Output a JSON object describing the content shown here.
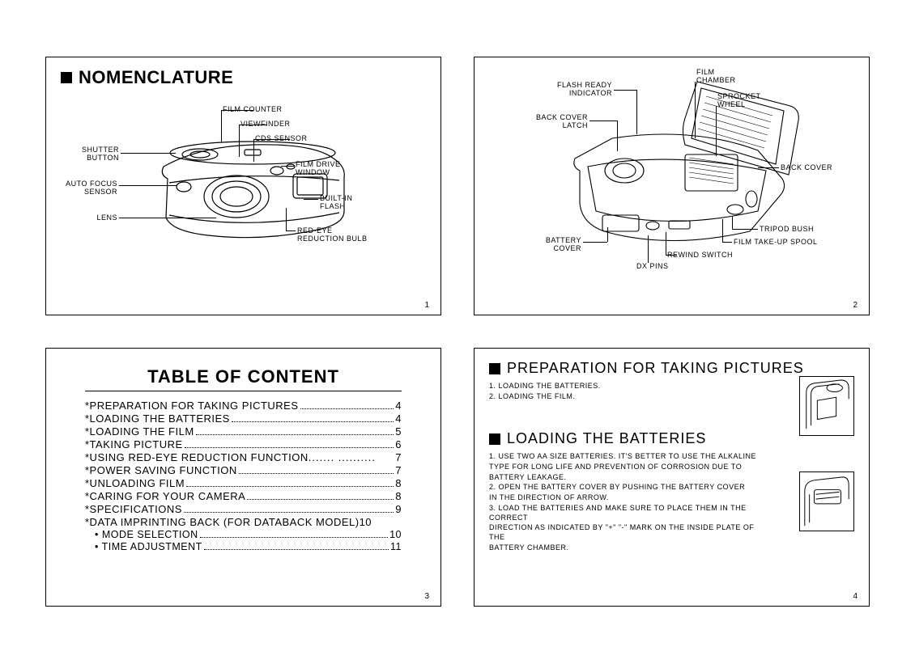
{
  "panel1": {
    "title": "NOMENCLATURE",
    "page": "1",
    "labels": {
      "shutter_button": "SHUTTER\nBUTTON",
      "auto_focus": "AUTO FOCUS\nSENSOR",
      "lens": "LENS",
      "film_counter": "FILM COUNTER",
      "viewfinder": "VIEWFINDER",
      "cds_sensor": "CDS SENSOR",
      "film_drive": "FILM DRIVE\nWINDOW",
      "built_in_flash": "BUILT-IN\nFLASH",
      "red_eye": "RED-EYE\nREDUCTION BULB"
    }
  },
  "panel2": {
    "page": "2",
    "labels": {
      "flash_ready": "FLASH READY\nINDICATOR",
      "back_cover_latch": "BACK COVER\nLATCH",
      "film_chamber": "FILM\nCHAMBER",
      "sprocket_wheel": "SPROCKET\nWHEEL",
      "back_cover": "BACK COVER",
      "tripod_bush": "TRIPOD BUSH",
      "film_takeup": "FILM TAKE-UP SPOOL",
      "rewind_switch": "REWIND SWITCH",
      "dx_pins": "DX PINS",
      "battery_cover": "BATTERY\nCOVER"
    }
  },
  "panel3": {
    "title": "TABLE OF CONTENT",
    "page": "3",
    "items": [
      {
        "t": "*PREPARATION  FOR  TAKING  PICTURES",
        "p": "4"
      },
      {
        "t": "*LOADING  THE  BATTERIES ",
        "p": "4"
      },
      {
        "t": "*LOADING  THE   FILM",
        "p": "5"
      },
      {
        "t": "*TAKING  PICTURE ",
        "p": "6"
      },
      {
        "t": "*USING  RED-EYE  REDUCTION  FUNCTION",
        "dots": "....... ..........",
        "p": "7"
      },
      {
        "t": "*POWER  SAVING  FUNCTION",
        "p": "7"
      },
      {
        "t": "*UNLOADING   FILM",
        "p": "8"
      },
      {
        "t": "*CARING  FOR  YOUR  CAMERA",
        "p": "8"
      },
      {
        "t": "*SPECIFICATIONS",
        "p": "9"
      },
      {
        "t": "*DATA  IMPRINTING  BACK  (FOR  DATABACK  MODEL)",
        "p": "10",
        "nodots": true
      },
      {
        "t": "• MODE SELECTION",
        "p": "10",
        "indent": true
      },
      {
        "t": "• TIME  ADJUSTMENT",
        "p": "11",
        "indent": true
      }
    ]
  },
  "panel4": {
    "page": "4",
    "section1": {
      "title": "PREPARATION FOR TAKING  PICTURES",
      "items": [
        "1. LOADING THE BATTERIES.",
        "2. LOADING THE FILM."
      ]
    },
    "section2": {
      "title": "LOADING THE BATTERIES",
      "items": [
        "1. USE TWO AA SIZE BATTERIES. IT'S BETTER TO USE THE ALKALINE",
        "    TYPE FOR LONG LIFE AND PREVENTION OF CORROSION DUE TO",
        "    BATTERY LEAKAGE.",
        "2. OPEN THE BATTERY COVER BY PUSHING THE BATTERY COVER",
        "    IN THE DIRECTION OF ARROW.",
        "3. LOAD THE BATTERIES AND MAKE SURE TO PLACE THEM IN THE CORRECT",
        "    DIRECTION AS INDICATED BY \"+\"  \"-\" MARK ON THE INSIDE PLATE OF THE",
        "    BATTERY CHAMBER."
      ]
    }
  },
  "style": {
    "border_color": "#000000",
    "background_color": "#ffffff",
    "heading_fontsize": 22,
    "subheading_fontsize": 18,
    "label_fontsize": 9,
    "toc_fontsize": 13,
    "pagenum_fontsize": 10
  }
}
